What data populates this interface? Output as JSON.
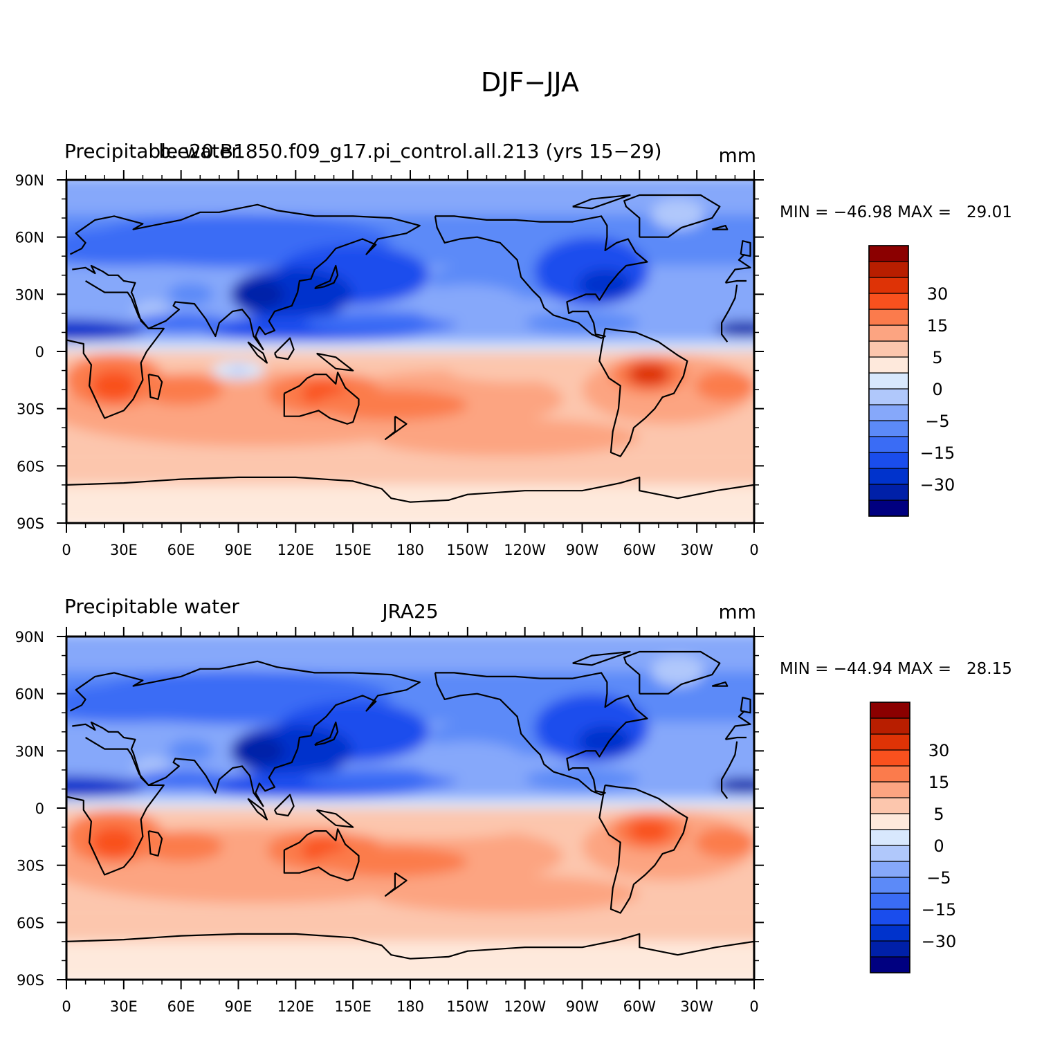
{
  "title": "DJF−JJA",
  "colorbar": {
    "colors": [
      "#000080",
      "#0020a8",
      "#0033cc",
      "#1a4ded",
      "#3a6cf5",
      "#5c8af8",
      "#86a8fa",
      "#b0c8fb",
      "#d8e8fd",
      "#fee9dc",
      "#fcc6ad",
      "#fca481",
      "#fb7b4c",
      "#f9511e",
      "#de3306",
      "#b81e00",
      "#8b0000"
    ],
    "labels": [
      "−30",
      "−15",
      "−5",
      "0",
      "5",
      "15",
      "30"
    ]
  },
  "chart_data": [
    {
      "type": "heatmap",
      "left_title": "Precipitable water",
      "center_title": "b.e20.B1850.f09_g17.pi_control.all.213 (yrs 15−29)",
      "right_title": "mm",
      "min_max_text": "MIN = −46.98 MAX =   29.01",
      "min": -46.98,
      "max": 29.01,
      "x_ticks": [
        "0",
        "30E",
        "60E",
        "90E",
        "120E",
        "150E",
        "180",
        "150W",
        "120W",
        "90W",
        "60W",
        "30W",
        "0"
      ],
      "y_ticks": [
        "90N",
        "60N",
        "30N",
        "0",
        "30S",
        "60S",
        "90S"
      ],
      "xlim": [
        0,
        360
      ],
      "ylim": [
        -90,
        90
      ]
    },
    {
      "type": "heatmap",
      "left_title": "Precipitable water",
      "center_title": "JRA25",
      "right_title": "mm",
      "min_max_text": "MIN = −44.94 MAX =   28.15",
      "min": -44.94,
      "max": 28.15,
      "x_ticks": [
        "0",
        "30E",
        "60E",
        "90E",
        "120E",
        "150E",
        "180",
        "150W",
        "120W",
        "90W",
        "60W",
        "30W",
        "0"
      ],
      "y_ticks": [
        "90N",
        "60N",
        "30N",
        "0",
        "30S",
        "60S",
        "90S"
      ],
      "xlim": [
        0,
        360
      ],
      "ylim": [
        -90,
        90
      ]
    }
  ]
}
